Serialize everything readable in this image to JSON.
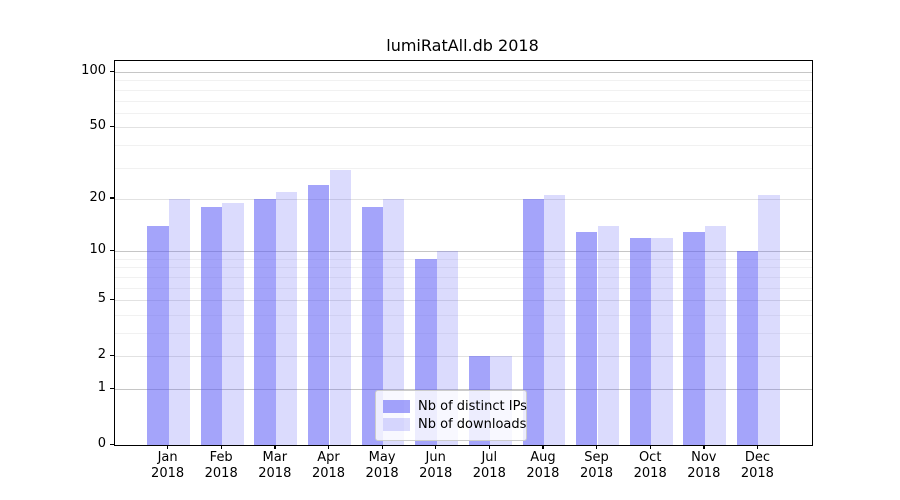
{
  "title": "lumiRatAll.db 2018",
  "chart_data": {
    "type": "bar",
    "title": "lumiRatAll.db 2018",
    "categories": [
      "Jan",
      "Feb",
      "Mar",
      "Apr",
      "May",
      "Jun",
      "Jul",
      "Aug",
      "Sep",
      "Oct",
      "Nov",
      "Dec"
    ],
    "category_year": "2018",
    "series": [
      {
        "name": "Nb of distinct IPs",
        "color": "rgba(90,90,245,0.55)",
        "values": [
          14,
          18,
          20,
          24,
          18,
          9,
          2,
          20,
          13,
          12,
          13,
          10
        ]
      },
      {
        "name": "Nb of downloads",
        "color": "rgba(90,90,245,0.22)",
        "values": [
          20,
          19,
          22,
          29,
          20,
          10,
          2,
          21,
          14,
          12,
          14,
          21
        ]
      }
    ],
    "y_axis": {
      "scale": "log10(1+x)",
      "ylim": [
        0,
        115
      ],
      "ticks": [
        {
          "v": 100,
          "label": "100",
          "major": true
        },
        {
          "v": 50,
          "label": "50",
          "major": false
        },
        {
          "v": 20,
          "label": "20",
          "major": false
        },
        {
          "v": 10,
          "label": "10",
          "major": true
        },
        {
          "v": 5,
          "label": "5",
          "major": false
        },
        {
          "v": 2,
          "label": "2",
          "major": false
        },
        {
          "v": 1,
          "label": "1",
          "major": true
        },
        {
          "v": 0,
          "label": "0",
          "major": false
        }
      ],
      "minor_gridlines": [
        3,
        4,
        6,
        7,
        8,
        9,
        30,
        40,
        60,
        70,
        80,
        90
      ]
    },
    "grid": true,
    "legend_position": "lower-center",
    "legend": [
      "Nb of distinct IPs",
      "Nb of downloads"
    ]
  }
}
